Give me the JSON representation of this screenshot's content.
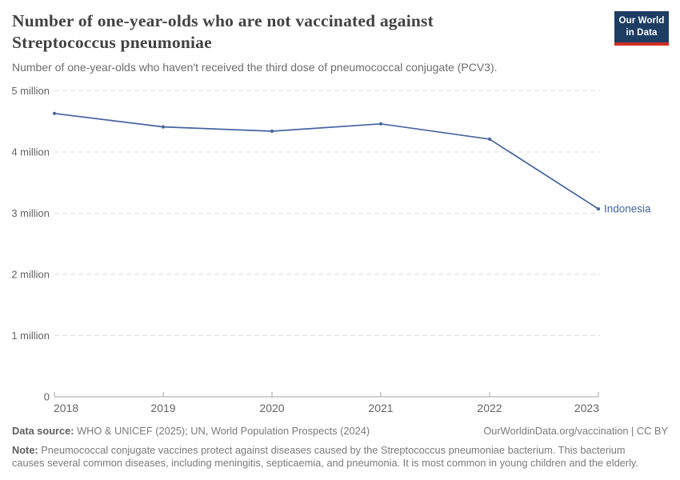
{
  "header": {
    "logo": {
      "line1": "Our World",
      "line2": "in Data"
    }
  },
  "colors": {
    "logo_bg": "#1d3d63",
    "logo_accent": "#cf2e26",
    "series_line": "#4664a0",
    "gridline": "#dedede",
    "axis": "#a5a5a5"
  },
  "chart_data": {
    "type": "line",
    "title": "Number of one-year-olds who are not vaccinated against Streptococcus pneumoniae",
    "subtitle": "Number of one-year-olds who haven't received the third dose of pneumococcal conjugate (PCV3).",
    "x": [
      2018,
      2019,
      2020,
      2021,
      2022,
      2023
    ],
    "x_tick_labels": [
      "2018",
      "2019",
      "2020",
      "2021",
      "2022",
      "2023"
    ],
    "series": [
      {
        "name": "Indonesia",
        "color": "#4664a0",
        "values": [
          4630000,
          4410000,
          4340000,
          4460000,
          4210000,
          3070000
        ]
      }
    ],
    "ylim": [
      0,
      5000000
    ],
    "yticks": [
      {
        "value": 0,
        "label": "0"
      },
      {
        "value": 1000000,
        "label": "1 million"
      },
      {
        "value": 2000000,
        "label": "2 million"
      },
      {
        "value": 3000000,
        "label": "3 million"
      },
      {
        "value": 4000000,
        "label": "4 million"
      },
      {
        "value": 5000000,
        "label": "5 million"
      }
    ],
    "grid": "horizontal-dashed",
    "legend": "line-end-label"
  },
  "footer": {
    "data_source_label": "Data source:",
    "data_source": "WHO & UNICEF (2025); UN, World Population Prospects (2024)",
    "rights": "OurWorldinData.org/vaccination | CC BY",
    "note_label": "Note:",
    "note_lines": [
      "Pneumococcal conjugate vaccines protect against diseases caused by the Streptococcus pneumoniae bacterium. This bacterium",
      "causes several common diseases, including meningitis, septicaemia, and pneumonia. It is most common in young children and the elderly."
    ]
  }
}
